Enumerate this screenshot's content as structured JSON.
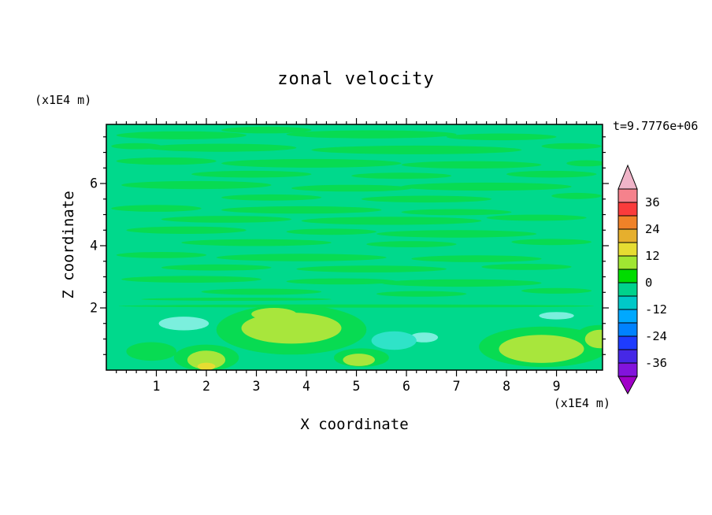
{
  "chart_data": {
    "type": "heatmap",
    "title": "zonal velocity",
    "xlabel": "X coordinate",
    "ylabel": "Z coordinate",
    "x_unit": "(x1E4 m)",
    "y_unit": "(x1E4 m)",
    "time_label": "t=9.7776e+06",
    "xlim": [
      0,
      9.92
    ],
    "ylim": [
      0,
      7.9
    ],
    "x_major_ticks": [
      1,
      2,
      3,
      4,
      5,
      6,
      7,
      8,
      9
    ],
    "y_major_ticks": [
      2,
      4,
      6
    ],
    "x_minor_step": 0.2,
    "y_minor_step": 0.5,
    "grid": false,
    "legend_position": "right-colorbar",
    "levels": [
      -42,
      -36,
      -30,
      -24,
      -18,
      -12,
      -6,
      0,
      6,
      12,
      18,
      24,
      30,
      36,
      42
    ],
    "colorbar": {
      "labels_top_to_bottom": [
        "36",
        "24",
        "12",
        "0",
        "-12",
        "-24",
        "-36"
      ],
      "arrow_top": "#F0B4C8",
      "arrow_bottom": "#A000C8",
      "segments_top_to_bottom": [
        "#F5828C",
        "#FA3C3C",
        "#F08228",
        "#E6AF2D",
        "#E6DC32",
        "#A0E632",
        "#00DC00",
        "#00D28C",
        "#00C8C8",
        "#00A8FF",
        "#0082FF",
        "#1E3CFF",
        "#4628E6",
        "#8214DC"
      ]
    },
    "field": {
      "base_color": "#00D98C",
      "base_value_band": "-6..0",
      "colors": {
        "g2": "#08DB52",
        "yg": "#A8E63C",
        "y": "#E6DC32",
        "cy": "#2FE3C8",
        "cyl": "#7BEFDD"
      },
      "blobs": [
        {
          "x": 1.5,
          "z": 7.55,
          "rx": 1.3,
          "rz": 0.13,
          "c": "g2"
        },
        {
          "x": 3.2,
          "z": 7.72,
          "rx": 0.9,
          "rz": 0.11,
          "c": "g2"
        },
        {
          "x": 5.3,
          "z": 7.58,
          "rx": 1.7,
          "rz": 0.13,
          "c": "g2"
        },
        {
          "x": 7.9,
          "z": 7.5,
          "rx": 1.1,
          "rz": 0.11,
          "c": "g2"
        },
        {
          "x": 0.6,
          "z": 7.2,
          "rx": 0.5,
          "rz": 0.1,
          "c": "g2"
        },
        {
          "x": 2.3,
          "z": 7.15,
          "rx": 1.5,
          "rz": 0.13,
          "c": "g2"
        },
        {
          "x": 6.2,
          "z": 7.08,
          "rx": 2.1,
          "rz": 0.14,
          "c": "g2"
        },
        {
          "x": 9.3,
          "z": 7.2,
          "rx": 0.6,
          "rz": 0.1,
          "c": "g2"
        },
        {
          "x": 1.2,
          "z": 6.72,
          "rx": 1.0,
          "rz": 0.12,
          "c": "g2"
        },
        {
          "x": 4.1,
          "z": 6.65,
          "rx": 1.8,
          "rz": 0.14,
          "c": "g2"
        },
        {
          "x": 7.3,
          "z": 6.6,
          "rx": 1.4,
          "rz": 0.12,
          "c": "g2"
        },
        {
          "x": 9.6,
          "z": 6.65,
          "rx": 0.4,
          "rz": 0.1,
          "c": "g2"
        },
        {
          "x": 2.9,
          "z": 6.3,
          "rx": 1.2,
          "rz": 0.11,
          "c": "g2"
        },
        {
          "x": 5.9,
          "z": 6.25,
          "rx": 1.0,
          "rz": 0.1,
          "c": "g2"
        },
        {
          "x": 8.9,
          "z": 6.3,
          "rx": 0.9,
          "rz": 0.11,
          "c": "g2"
        },
        {
          "x": 1.8,
          "z": 5.95,
          "rx": 1.5,
          "rz": 0.13,
          "c": "g2"
        },
        {
          "x": 4.9,
          "z": 5.85,
          "rx": 1.2,
          "rz": 0.11,
          "c": "g2"
        },
        {
          "x": 7.6,
          "z": 5.9,
          "rx": 1.7,
          "rz": 0.13,
          "c": "g2"
        },
        {
          "x": 3.3,
          "z": 5.55,
          "rx": 1.0,
          "rz": 0.1,
          "c": "g2"
        },
        {
          "x": 6.4,
          "z": 5.5,
          "rx": 1.3,
          "rz": 0.11,
          "c": "g2"
        },
        {
          "x": 9.4,
          "z": 5.6,
          "rx": 0.5,
          "rz": 0.1,
          "c": "g2"
        },
        {
          "x": 1.0,
          "z": 5.2,
          "rx": 0.9,
          "rz": 0.11,
          "c": "g2"
        },
        {
          "x": 3.9,
          "z": 5.15,
          "rx": 1.6,
          "rz": 0.12,
          "c": "g2"
        },
        {
          "x": 7.0,
          "z": 5.08,
          "rx": 1.1,
          "rz": 0.1,
          "c": "g2"
        },
        {
          "x": 2.4,
          "z": 4.85,
          "rx": 1.3,
          "rz": 0.11,
          "c": "g2"
        },
        {
          "x": 5.7,
          "z": 4.8,
          "rx": 1.8,
          "rz": 0.13,
          "c": "g2"
        },
        {
          "x": 8.6,
          "z": 4.9,
          "rx": 1.0,
          "rz": 0.1,
          "c": "g2"
        },
        {
          "x": 1.6,
          "z": 4.5,
          "rx": 1.2,
          "rz": 0.12,
          "c": "g2"
        },
        {
          "x": 4.5,
          "z": 4.45,
          "rx": 0.9,
          "rz": 0.1,
          "c": "g2"
        },
        {
          "x": 7.0,
          "z": 4.38,
          "rx": 1.6,
          "rz": 0.12,
          "c": "g2"
        },
        {
          "x": 3.0,
          "z": 4.1,
          "rx": 1.5,
          "rz": 0.11,
          "c": "g2"
        },
        {
          "x": 6.1,
          "z": 4.05,
          "rx": 0.9,
          "rz": 0.1,
          "c": "g2"
        },
        {
          "x": 8.9,
          "z": 4.12,
          "rx": 0.8,
          "rz": 0.1,
          "c": "g2"
        },
        {
          "x": 1.1,
          "z": 3.7,
          "rx": 0.9,
          "rz": 0.1,
          "c": "g2"
        },
        {
          "x": 3.9,
          "z": 3.62,
          "rx": 1.7,
          "rz": 0.12,
          "c": "g2"
        },
        {
          "x": 7.4,
          "z": 3.58,
          "rx": 1.3,
          "rz": 0.11,
          "c": "g2"
        },
        {
          "x": 2.2,
          "z": 3.3,
          "rx": 1.1,
          "rz": 0.1,
          "c": "g2"
        },
        {
          "x": 5.3,
          "z": 3.25,
          "rx": 1.5,
          "rz": 0.11,
          "c": "g2"
        },
        {
          "x": 8.4,
          "z": 3.32,
          "rx": 0.9,
          "rz": 0.1,
          "c": "g2"
        },
        {
          "x": 1.7,
          "z": 2.92,
          "rx": 1.4,
          "rz": 0.11,
          "c": "g2"
        },
        {
          "x": 4.7,
          "z": 2.85,
          "rx": 1.1,
          "rz": 0.1,
          "c": "g2"
        },
        {
          "x": 7.1,
          "z": 2.8,
          "rx": 1.6,
          "rz": 0.12,
          "c": "g2"
        },
        {
          "x": 3.1,
          "z": 2.52,
          "rx": 1.2,
          "rz": 0.1,
          "c": "g2"
        },
        {
          "x": 6.3,
          "z": 2.45,
          "rx": 0.9,
          "rz": 0.09,
          "c": "g2"
        },
        {
          "x": 9.0,
          "z": 2.55,
          "rx": 0.7,
          "rz": 0.09,
          "c": "g2"
        },
        {
          "x": 2.6,
          "z": 2.28,
          "rx": 1.9,
          "rz": 0.05,
          "c": "g2"
        },
        {
          "x": 5.0,
          "z": 2.06,
          "rx": 4.75,
          "rz": 0.05,
          "c": "g2"
        },
        {
          "x": 3.7,
          "z": 1.3,
          "rx": 1.5,
          "rz": 0.8,
          "c": "g2"
        },
        {
          "x": 8.75,
          "z": 0.75,
          "rx": 1.3,
          "rz": 0.65,
          "c": "g2"
        },
        {
          "x": 2.0,
          "z": 0.4,
          "rx": 0.65,
          "rz": 0.42,
          "c": "g2"
        },
        {
          "x": 5.1,
          "z": 0.4,
          "rx": 0.55,
          "rz": 0.3,
          "c": "g2"
        },
        {
          "x": 9.85,
          "z": 1.0,
          "rx": 0.5,
          "rz": 0.45,
          "c": "g2"
        },
        {
          "x": 0.9,
          "z": 0.6,
          "rx": 0.5,
          "rz": 0.3,
          "c": "g2"
        },
        {
          "x": 3.7,
          "z": 1.35,
          "rx": 1.0,
          "rz": 0.5,
          "c": "yg"
        },
        {
          "x": 3.35,
          "z": 1.8,
          "rx": 0.45,
          "rz": 0.2,
          "c": "yg"
        },
        {
          "x": 2.0,
          "z": 0.33,
          "rx": 0.38,
          "rz": 0.3,
          "c": "yg"
        },
        {
          "x": 5.05,
          "z": 0.33,
          "rx": 0.32,
          "rz": 0.2,
          "c": "yg"
        },
        {
          "x": 8.7,
          "z": 0.68,
          "rx": 0.85,
          "rz": 0.45,
          "c": "yg"
        },
        {
          "x": 9.87,
          "z": 1.0,
          "rx": 0.3,
          "rz": 0.3,
          "c": "yg"
        },
        {
          "x": 2.0,
          "z": 0.12,
          "rx": 0.18,
          "rz": 0.12,
          "c": "y"
        },
        {
          "x": 1.55,
          "z": 1.5,
          "rx": 0.5,
          "rz": 0.22,
          "c": "cyl"
        },
        {
          "x": 6.35,
          "z": 1.05,
          "rx": 0.28,
          "rz": 0.16,
          "c": "cyl"
        },
        {
          "x": 9.0,
          "z": 1.75,
          "rx": 0.35,
          "rz": 0.12,
          "c": "cyl"
        },
        {
          "x": 5.75,
          "z": 0.95,
          "rx": 0.45,
          "rz": 0.3,
          "c": "cy"
        }
      ]
    }
  }
}
